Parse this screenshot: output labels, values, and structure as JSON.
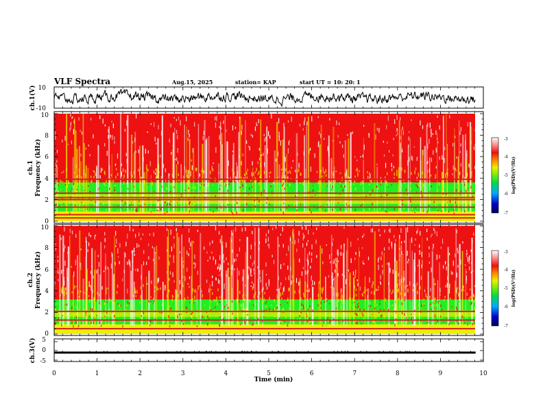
{
  "header": {
    "title": "VLF Spectra",
    "date": "Aug.15, 2025",
    "station": "station= KAP",
    "start": "start  UT  =   10: 20: 1"
  },
  "colors": {
    "spec_low": "#0000aa",
    "spec_mid": "#22ee22",
    "spec_yellow": "#eeee00",
    "spec_high": "#ee1111",
    "spec_top": "#ffffff",
    "trace": "#000000"
  },
  "chart_data": [
    {
      "id": "ch1_waveform",
      "type": "line",
      "ylabel": "ch.1(V)",
      "ylim": [
        -10,
        10
      ],
      "yticks": [
        "10",
        "-10"
      ],
      "note": "dense VLF waveform, amplitude approx +-5 V"
    },
    {
      "id": "ch1_spectrogram",
      "type": "heatmap",
      "ylabel": "ch.1\nFrequency  (kHz)",
      "ylim": [
        0,
        10
      ],
      "yticks": [
        "0",
        "2",
        "4",
        "6",
        "8",
        "10"
      ],
      "colorbar": {
        "label": "log(PSD)(V²/Hz)",
        "range": [
          -7,
          -3
        ],
        "ticks": [
          "-3",
          "-4",
          "-5",
          "-6",
          "-7"
        ]
      },
      "band_lines_khz": [
        0.3,
        0.6,
        1.3,
        2.0,
        2.2,
        2.6,
        3.9
      ]
    },
    {
      "id": "ch2_spectrogram",
      "type": "heatmap",
      "ylabel": "ch.2\nFrequency  (kHz)",
      "ylim": [
        0,
        10
      ],
      "yticks": [
        "0",
        "2",
        "4",
        "6",
        "8",
        "10"
      ],
      "colorbar": {
        "label": "log(PSD)(V²/Hz)",
        "range": [
          -7,
          -3
        ],
        "ticks": [
          "-3",
          "-4",
          "-5",
          "-6",
          "-7"
        ]
      },
      "band_lines_khz": [
        0.5,
        1.3,
        2.1
      ]
    },
    {
      "id": "ch3_waveform",
      "type": "line",
      "ylabel": "ch.3(V)",
      "ylim": [
        -5,
        5
      ],
      "yticks": [
        "5",
        "0",
        "-5"
      ],
      "note": "flat thick band near -1 V"
    }
  ],
  "x_axis": {
    "label": "Time  (min)",
    "range": [
      0,
      10
    ],
    "ticks": [
      "0",
      "1",
      "2",
      "3",
      "4",
      "5",
      "6",
      "7",
      "8",
      "9",
      "10"
    ],
    "data_end_min": 9.82
  }
}
